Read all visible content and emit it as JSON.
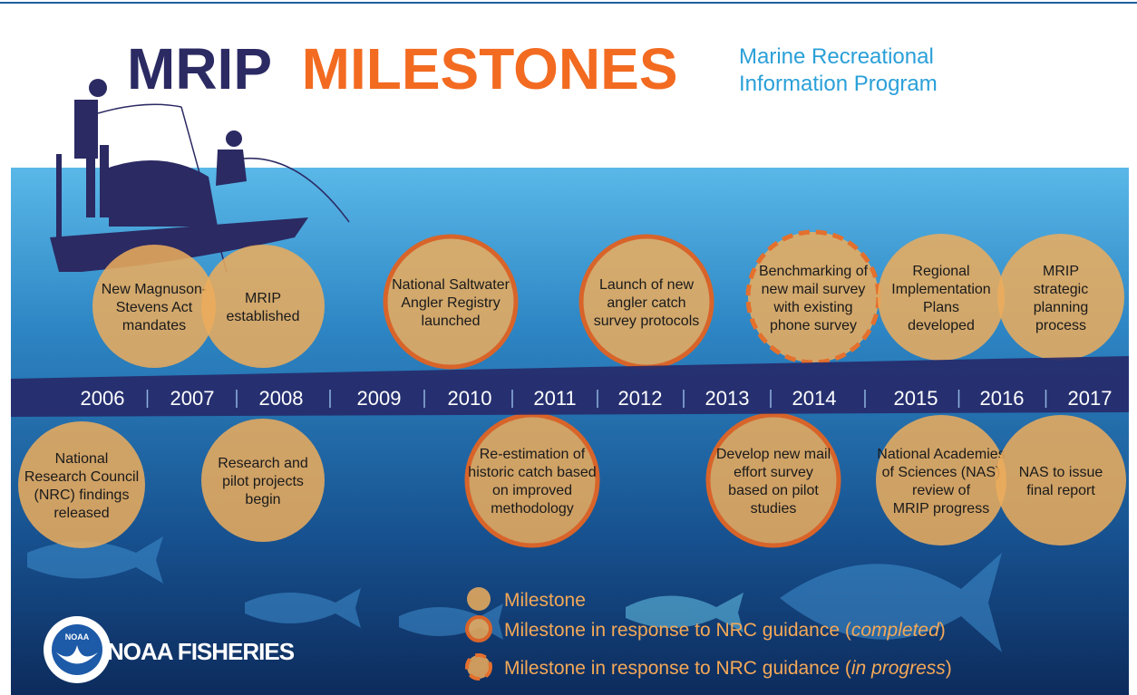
{
  "header": {
    "title_part1": "MRIP",
    "title_part2": "MILESTONES",
    "subtitle_lines": [
      "Marine Recreational",
      "Information Program"
    ]
  },
  "timeline": {
    "years": [
      "2006",
      "2007",
      "2008",
      "2009",
      "2010",
      "2011",
      "2012",
      "2013",
      "2014",
      "2015",
      "2016",
      "2017"
    ]
  },
  "milestones": [
    {
      "kind": "milestone",
      "lines": [
        "New Magnuson-",
        "Stevens Act",
        "mandates"
      ]
    },
    {
      "kind": "milestone",
      "lines": [
        "MRIP",
        "established"
      ]
    },
    {
      "kind": "nrc_completed",
      "lines": [
        "National Saltwater",
        "Angler Registry",
        "launched"
      ]
    },
    {
      "kind": "nrc_completed",
      "lines": [
        "Launch of new",
        "angler catch",
        "survey protocols"
      ]
    },
    {
      "kind": "nrc_in_progress",
      "lines": [
        "Benchmarking of",
        "new mail survey",
        "with existing",
        "phone survey"
      ]
    },
    {
      "kind": "milestone",
      "lines": [
        "Regional",
        "Implementation",
        "Plans",
        "developed"
      ]
    },
    {
      "kind": "milestone",
      "lines": [
        "MRIP",
        "strategic",
        "planning",
        "process"
      ]
    },
    {
      "kind": "milestone",
      "lines": [
        "National",
        "Research Council",
        "(NRC) findings",
        "released"
      ]
    },
    {
      "kind": "milestone",
      "lines": [
        "Research and",
        "pilot projects",
        "begin"
      ]
    },
    {
      "kind": "nrc_completed",
      "lines": [
        "Re-estimation of",
        "historic catch based",
        "on improved",
        "methodology"
      ]
    },
    {
      "kind": "nrc_completed",
      "lines": [
        "Develop new mail",
        "effort survey",
        "based on pilot",
        "studies"
      ]
    },
    {
      "kind": "milestone",
      "lines": [
        "National Academies",
        "of Sciences (NAS)",
        "review of",
        "MRIP progress"
      ]
    },
    {
      "kind": "milestone",
      "lines": [
        "NAS to issue",
        "final report"
      ]
    }
  ],
  "legend": [
    {
      "kind": "milestone",
      "parts": [
        {
          "text": "Milestone"
        }
      ]
    },
    {
      "kind": "nrc_completed",
      "parts": [
        {
          "text": "Milestone in response to NRC guidance ("
        },
        {
          "text": "completed",
          "italic": true
        },
        {
          "text": ")"
        }
      ]
    },
    {
      "kind": "nrc_in_progress",
      "parts": [
        {
          "text": "Milestone in response to NRC guidance ("
        },
        {
          "text": "in progress",
          "italic": true
        },
        {
          "text": ")"
        }
      ]
    }
  ],
  "logo": {
    "emblem": "NOAA",
    "name": "NOAA FISHERIES"
  }
}
